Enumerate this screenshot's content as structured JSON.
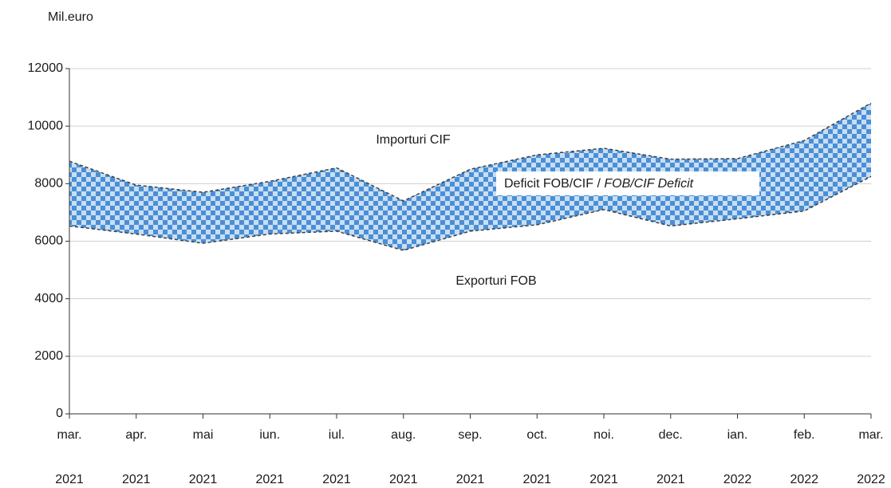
{
  "chart_data": {
    "type": "area-band",
    "y_label": "Mil.euro",
    "categories": [
      "mar. 2021",
      "apr. 2021",
      "mai 2021",
      "iun. 2021",
      "iul. 2021",
      "aug. 2021",
      "sep. 2021",
      "oct. 2021",
      "noi. 2021",
      "dec. 2021",
      "ian. 2022",
      "feb. 2022",
      "mar. 2022"
    ],
    "series": [
      {
        "name": "Importuri CIF",
        "color": "#404040",
        "values": [
          8780,
          7950,
          7700,
          8080,
          8550,
          7400,
          8500,
          9000,
          9230,
          8850,
          8870,
          9500,
          10800
        ]
      },
      {
        "name": "Exporturi FOB",
        "color": "#404040",
        "values": [
          6530,
          6250,
          5930,
          6250,
          6350,
          5680,
          6350,
          6570,
          7100,
          6530,
          6780,
          7050,
          8250
        ]
      }
    ],
    "band": {
      "label": "Deficit FOB/CIF / ",
      "label_italic": "FOB/CIF Deficit",
      "colors": [
        "#4a8fd6",
        "#c9def3"
      ]
    },
    "ylim": [
      0,
      12000
    ],
    "yticks": [
      0,
      2000,
      4000,
      6000,
      8000,
      10000,
      12000
    ],
    "grid": true
  }
}
